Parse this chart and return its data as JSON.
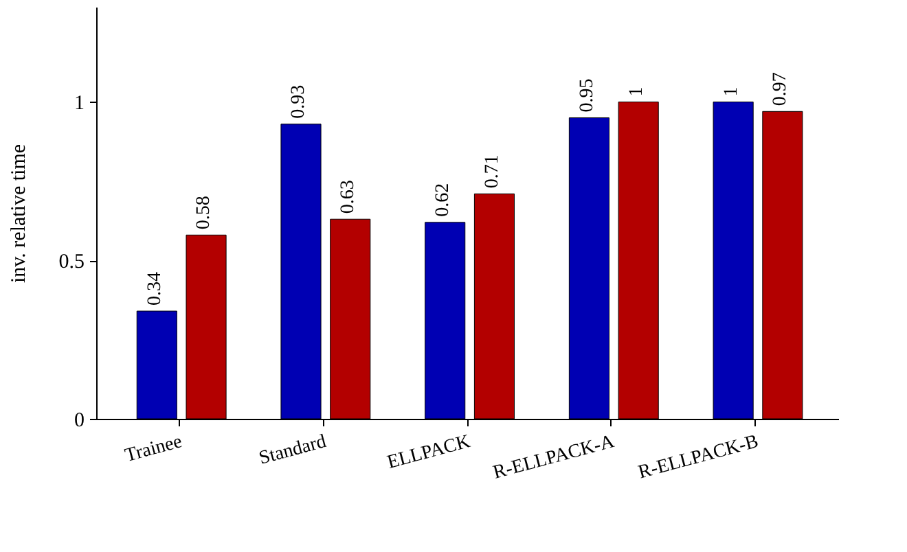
{
  "chart_data": {
    "type": "bar",
    "ylabel": "inv. relative time",
    "categories": [
      "Trainee",
      "Standard",
      "ELLPACK",
      "R-ELLPACK-A",
      "R-ELLPACK-B"
    ],
    "series": [
      {
        "color": "#0000b3",
        "values": [
          0.34,
          0.93,
          0.62,
          0.95,
          1
        ]
      },
      {
        "color": "#b30000",
        "values": [
          0.58,
          0.63,
          0.71,
          1,
          0.97
        ]
      }
    ],
    "ylim": [
      0,
      1.3
    ],
    "yticks": [
      0,
      0.5,
      1
    ],
    "grid": false,
    "data_labels": true
  }
}
